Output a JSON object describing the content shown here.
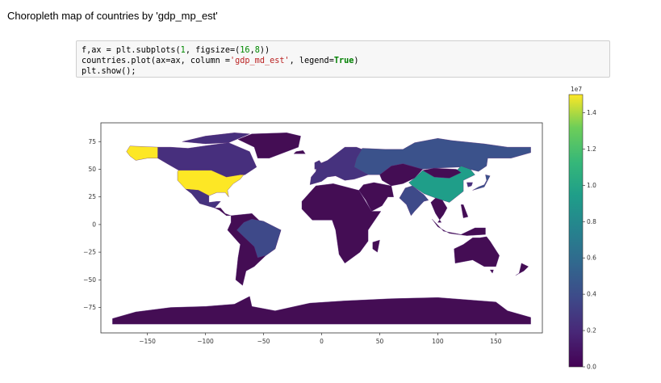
{
  "page": {
    "title": "Choropleth map of countries by 'gdp_mp_est'"
  },
  "code_cell": {
    "line1": {
      "a": "f,ax = plt.subplots(",
      "n1": "1",
      "b": ", figsize=(",
      "n2": "16",
      "c": ",",
      "n3": "8",
      "d": "))"
    },
    "line2": {
      "a": "countries.plot(ax=ax, column =",
      "s": "'gdp_md_est'",
      "b": ", legend=",
      "k": "True",
      "c": ")"
    },
    "line3": {
      "a": "plt.show();"
    }
  },
  "colors": {
    "us": "#fde725",
    "china": "#1f9e89",
    "japan": "#3a548c",
    "india": "#3e4a89",
    "russia": "#3b528b",
    "brazil": "#3e4989",
    "europe": "#46327e",
    "canada": "#472f7d",
    "base": "#440d54",
    "ocean": "#ffffff"
  },
  "chart_data": {
    "type": "choropleth",
    "column": "gdp_md_est",
    "x_axis": {
      "ticks": [
        -150,
        -100,
        -50,
        0,
        50,
        100,
        150
      ],
      "tick_labels": [
        "−150",
        "−100",
        "−50",
        "0",
        "50",
        "100",
        "150"
      ],
      "range": [
        -190,
        190
      ]
    },
    "y_axis": {
      "ticks": [
        75,
        50,
        25,
        0,
        -25,
        -50,
        -75
      ],
      "tick_labels": [
        "75",
        "50",
        "25",
        "0",
        "−25",
        "−50",
        "−75"
      ],
      "range": [
        -98,
        92
      ]
    },
    "colorbar": {
      "range": [
        0,
        15000000
      ],
      "ticks": [
        0,
        0.2,
        0.4,
        0.6,
        0.8,
        1.0,
        1.2,
        1.4
      ],
      "tick_labels": [
        "0.0",
        "0.2",
        "0.4",
        "0.6",
        "0.8",
        "1.0",
        "1.2",
        "1.4"
      ],
      "offset_label": "1e7",
      "colormap": "viridis"
    },
    "grid": false
  }
}
